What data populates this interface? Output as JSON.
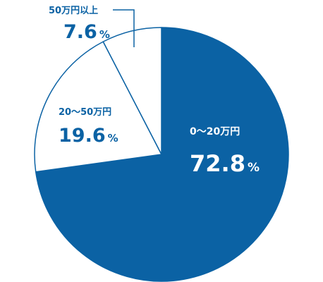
{
  "chart_data": {
    "type": "pie",
    "slices": [
      {
        "label": "0〜20万円",
        "value": 72.8,
        "display_value": "72.8",
        "unit": "%",
        "color": "#0b62a4",
        "label_color": "#ffffff"
      },
      {
        "label": "20〜50万円",
        "value": 19.6,
        "display_value": "19.6",
        "unit": "%",
        "color": "#ffffff",
        "label_color": "#0b62a4"
      },
      {
        "label": "50万円以上",
        "value": 7.6,
        "display_value": "7.6",
        "unit": "%",
        "color": "#ffffff",
        "label_color": "#0b62a4"
      }
    ],
    "start": "12 o'clock",
    "direction": "clockwise",
    "outline_color": "#0b62a4"
  }
}
